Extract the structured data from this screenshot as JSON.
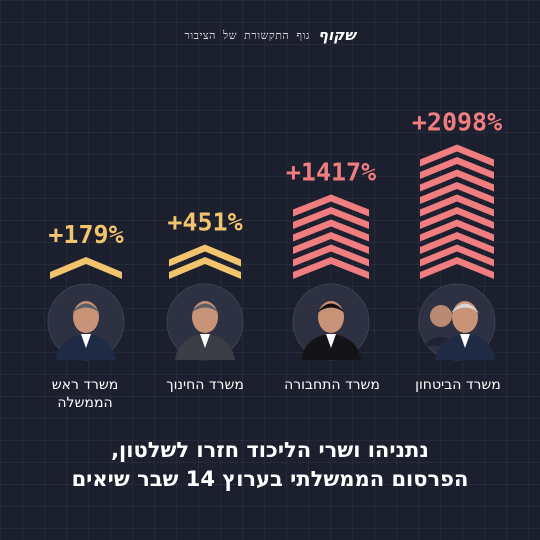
{
  "header": {
    "brand": "שקוף",
    "tagline": "גוף התקשורת של הציבור"
  },
  "headline": {
    "line1": "נתניהו ושרי הליכוד חזרו לשלטון,",
    "line2": "הפרסום הממשלתי בערוץ 14 שבר שיאים"
  },
  "chart_data": {
    "type": "bar",
    "categories": [
      "משרד ראש הממשלה",
      "משרד החינוך",
      "משרד התחבורה",
      "משרד הביטחון"
    ],
    "series": [
      {
        "values": [
          179,
          451,
          1417,
          2098
        ],
        "labels": [
          "+179%",
          "+451%",
          "+1417%",
          "+2098%"
        ]
      }
    ],
    "chevron_counts": [
      1,
      2,
      6,
      10
    ],
    "colors": [
      "#f2c46d",
      "#f2c46d",
      "#f07e80",
      "#f07e80"
    ],
    "photos": [
      "netanyahu-portrait",
      "kisch-portrait",
      "regev-portrait",
      "gallant-katz-portrait"
    ]
  }
}
